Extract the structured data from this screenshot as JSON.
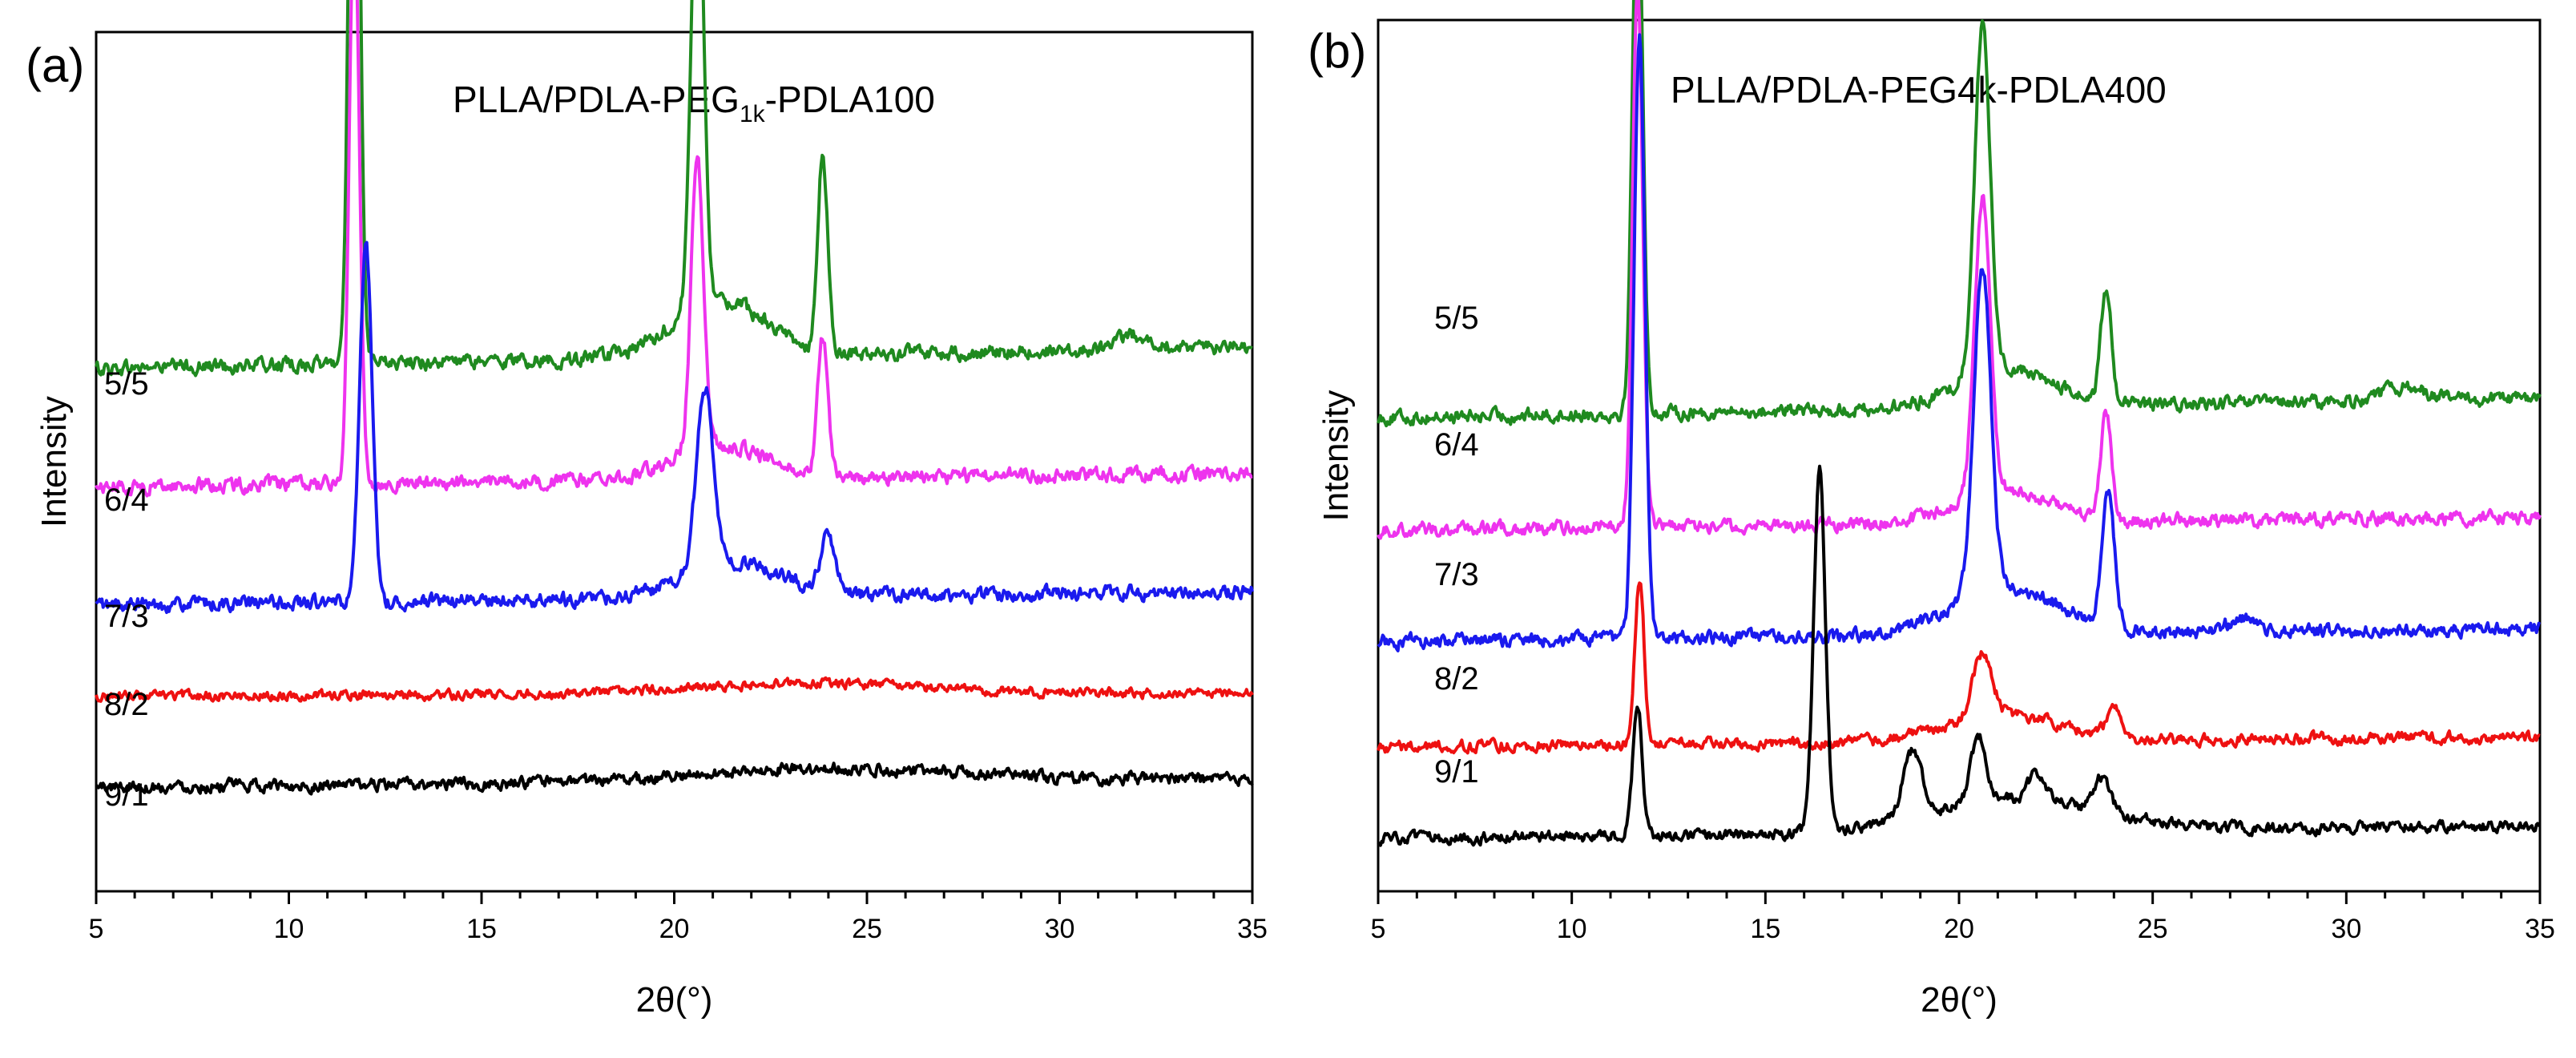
{
  "chart_data": [
    {
      "type": "line",
      "panel_label": "(a)",
      "title": "PLLA/PDLA-PEG",
      "title_sub": "1k",
      "title_suffix": "-PDLA100",
      "xlabel": "2θ(°)",
      "ylabel": "Intensity",
      "xlim": [
        5,
        35
      ],
      "xticks": [
        "5",
        "10",
        "15",
        "20",
        "25",
        "30",
        "35"
      ],
      "grid": false,
      "series": [
        {
          "name": "5/5",
          "color": "#1f8a1f",
          "baseline": 75,
          "slope": 3,
          "noise": 1.8,
          "peaks": [
            [
              11.7,
              122,
              0.13
            ],
            [
              20.6,
              68,
              0.16
            ],
            [
              23.85,
              28,
              0.13
            ],
            [
              21.2,
              8,
              1.2
            ],
            [
              32,
              2,
              0.5
            ]
          ]
        },
        {
          "name": "6/4",
          "color": "#ee33ee",
          "baseline": 58,
          "slope": 2,
          "noise": 1.8,
          "peaks": [
            [
              11.7,
              83,
              0.13
            ],
            [
              20.6,
              42,
              0.16
            ],
            [
              23.85,
              20,
              0.13
            ],
            [
              21.2,
              5,
              1.2
            ]
          ]
        },
        {
          "name": "7/3",
          "color": "#1a1aee",
          "baseline": 41,
          "slope": 2,
          "noise": 1.8,
          "peaks": [
            [
              12.0,
              51,
              0.16
            ],
            [
              20.8,
              26,
              0.22
            ],
            [
              24.0,
              8,
              0.18
            ],
            [
              21.6,
              5,
              1.3
            ]
          ]
        },
        {
          "name": "8/2",
          "color": "#ee1111",
          "baseline": 28,
          "slope": 0.5,
          "noise": 1.2,
          "peaks": [
            [
              23.5,
              1.5,
              3
            ]
          ]
        },
        {
          "name": "9/1",
          "color": "#000000",
          "baseline": 15,
          "slope": 1,
          "noise": 1.5,
          "peaks": [
            [
              24,
              2,
              3.5
            ]
          ]
        }
      ]
    },
    {
      "type": "line",
      "panel_label": "(b)",
      "title": "PLLA/PDLA-PEG4k-PDLA400",
      "title_sub": "",
      "title_suffix": "",
      "xlabel": "2θ(°)",
      "ylabel": "Intensity",
      "xlim": [
        5,
        35
      ],
      "xticks": [
        "5",
        "10",
        "15",
        "20",
        "25",
        "30",
        "35"
      ],
      "grid": false,
      "series": [
        {
          "name": "5/5",
          "color": "#1f8a1f",
          "baseline": 72,
          "slope": 3,
          "noise": 1.8,
          "peaks": [
            [
              11.7,
              86,
              0.13
            ],
            [
              20.6,
              53,
              0.2
            ],
            [
              23.8,
              17,
              0.14
            ],
            [
              21.2,
              6,
              1.2
            ],
            [
              31.5,
              2,
              0.6
            ]
          ]
        },
        {
          "name": "6/4",
          "color": "#ee33ee",
          "baseline": 55,
          "slope": 2,
          "noise": 1.8,
          "peaks": [
            [
              11.7,
              82,
              0.13
            ],
            [
              20.6,
              45,
              0.2
            ],
            [
              23.8,
              16,
              0.14
            ],
            [
              21.2,
              5,
              1.2
            ]
          ]
        },
        {
          "name": "7/3",
          "color": "#1a1aee",
          "baseline": 38,
          "slope": 2,
          "noise": 1.8,
          "peaks": [
            [
              11.75,
              92,
              0.14
            ],
            [
              20.6,
              50,
              0.22
            ],
            [
              23.85,
              20,
              0.16
            ],
            [
              21.2,
              7,
              1.4
            ],
            [
              27.3,
              2,
              0.4
            ]
          ]
        },
        {
          "name": "8/2",
          "color": "#ee1111",
          "baseline": 22,
          "slope": 1.5,
          "noise": 1.5,
          "peaks": [
            [
              11.75,
              25,
              0.12
            ],
            [
              20.6,
              10,
              0.25
            ],
            [
              24.0,
              4,
              0.2
            ],
            [
              21.2,
              4,
              1.5
            ]
          ]
        },
        {
          "name": "9/1",
          "color": "#000000",
          "baseline": 8,
          "slope": 2,
          "noise": 1.5,
          "peaks": [
            [
              11.7,
              20,
              0.12
            ],
            [
              16.4,
              55,
              0.15
            ],
            [
              18.8,
              10,
              0.25
            ],
            [
              20.5,
              10,
              0.2
            ],
            [
              22.0,
              4,
              0.2
            ],
            [
              23.7,
              5,
              0.2
            ],
            [
              21.5,
              5,
              2.2
            ]
          ]
        }
      ]
    }
  ]
}
